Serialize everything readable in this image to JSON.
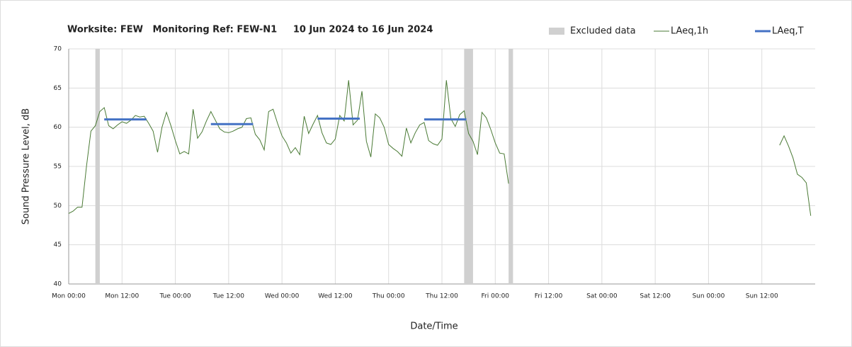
{
  "chart_data": {
    "type": "line",
    "title": "Worksite: FEW   Monitoring Ref: FEW-N1     10 Jun 2024 to 16 Jun 2024",
    "xlabel": "Date/Time",
    "ylabel": "Sound Pressure Level, dB",
    "xlim": [
      0,
      168
    ],
    "ylim": [
      40,
      70
    ],
    "yticks": [
      40,
      45,
      50,
      55,
      60,
      65,
      70
    ],
    "xticks": [
      {
        "value": 0,
        "label": "Mon 00:00"
      },
      {
        "value": 12,
        "label": "Mon 12:00"
      },
      {
        "value": 24,
        "label": "Tue 00:00"
      },
      {
        "value": 36,
        "label": "Tue 12:00"
      },
      {
        "value": 48,
        "label": "Wed 00:00"
      },
      {
        "value": 60,
        "label": "Wed 12:00"
      },
      {
        "value": 72,
        "label": "Thu 00:00"
      },
      {
        "value": 84,
        "label": "Thu 12:00"
      },
      {
        "value": 96,
        "label": "Fri 00:00"
      },
      {
        "value": 108,
        "label": "Fri 12:00"
      },
      {
        "value": 120,
        "label": "Sat 00:00"
      },
      {
        "value": 132,
        "label": "Sat 12:00"
      },
      {
        "value": 144,
        "label": "Sun 00:00"
      },
      {
        "value": 156,
        "label": "Sun 12:00"
      }
    ],
    "grid": true,
    "legend": "top-right",
    "series": [
      {
        "name": "Excluded data",
        "color": "#d0d0d0",
        "ranges": [
          [
            6,
            7
          ],
          [
            89,
            91
          ],
          [
            99,
            100
          ]
        ]
      },
      {
        "name": "LAeq,1h",
        "color": "#4a7a35",
        "x": [
          0,
          1,
          2,
          3,
          4,
          5,
          6,
          7,
          8,
          9,
          10,
          11,
          12,
          13,
          14,
          15,
          16,
          17,
          18,
          19,
          20,
          21,
          22,
          23,
          24,
          25,
          26,
          27,
          28,
          29,
          30,
          31,
          32,
          33,
          34,
          35,
          36,
          37,
          38,
          39,
          40,
          41,
          42,
          43,
          44,
          45,
          46,
          47,
          48,
          49,
          50,
          51,
          52,
          53,
          54,
          55,
          56,
          57,
          58,
          59,
          60,
          61,
          62,
          63,
          64,
          65,
          66,
          67,
          68,
          69,
          70,
          71,
          72,
          73,
          74,
          75,
          76,
          77,
          78,
          79,
          80,
          81,
          82,
          83,
          84,
          85,
          86,
          87,
          88,
          89,
          90,
          91,
          92,
          93,
          94,
          95,
          96,
          97,
          98,
          99,
          100,
          160,
          161,
          162,
          163,
          164,
          165,
          166,
          167
        ],
        "values": [
          49.0,
          49.3,
          49.8,
          49.8,
          55.0,
          59.5,
          60.2,
          62.0,
          62.5,
          60.2,
          59.8,
          60.3,
          60.7,
          60.5,
          60.9,
          61.5,
          61.3,
          61.4,
          60.5,
          59.5,
          56.8,
          60.0,
          61.9,
          60.2,
          58.3,
          56.6,
          56.9,
          56.6,
          62.3,
          58.6,
          59.4,
          60.8,
          62.0,
          60.9,
          59.8,
          59.4,
          59.3,
          59.5,
          59.8,
          60.0,
          61.1,
          61.2,
          59.1,
          58.4,
          57.1,
          62.0,
          62.3,
          60.5,
          58.9,
          58.0,
          56.7,
          57.4,
          56.5,
          61.4,
          59.2,
          60.4,
          61.5,
          59.3,
          58.0,
          57.8,
          58.5,
          61.5,
          60.8,
          66.0,
          60.3,
          60.9,
          64.6,
          58.2,
          56.2,
          61.7,
          61.2,
          60.0,
          57.8,
          57.3,
          56.9,
          56.3,
          59.9,
          58.0,
          59.3,
          60.3,
          60.6,
          58.3,
          57.9,
          57.7,
          58.5,
          66.0,
          61.1,
          60.1,
          61.6,
          62.1,
          59.2,
          58.2,
          56.5,
          61.9,
          61.2,
          59.7,
          58.0,
          56.7,
          56.6,
          52.8,
          null,
          57.7,
          58.9,
          57.6,
          56.1,
          54.0,
          53.6,
          52.9,
          48.7
        ]
      },
      {
        "name": "LAeq,T",
        "color": "#4472c4",
        "segments": [
          {
            "x": [
              8,
              17.5
            ],
            "value": 61.0
          },
          {
            "x": [
              32,
              41.5
            ],
            "value": 60.4
          },
          {
            "x": [
              56,
              65.5
            ],
            "value": 61.1
          },
          {
            "x": [
              80,
              89.5
            ],
            "value": 61.0
          }
        ]
      }
    ]
  }
}
